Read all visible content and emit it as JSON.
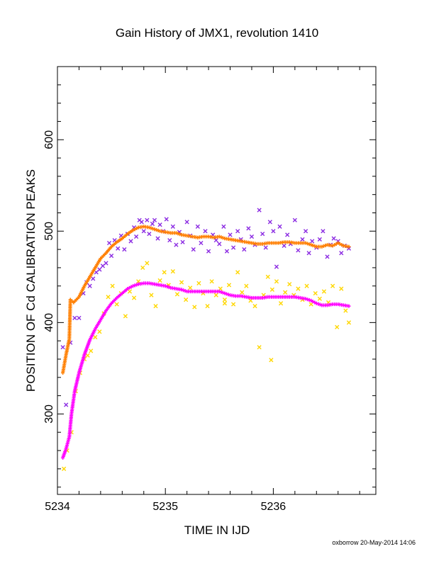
{
  "chart_data": {
    "type": "scatter",
    "title": "Gain History of JMX1, revolution 1410",
    "xlabel": "TIME IN IJD",
    "ylabel": "POSITION OF Cd CALIBRATION PEAKS",
    "xlim": [
      5234.0,
      5236.95
    ],
    "ylim": [
      212,
      680
    ],
    "xticks": [
      5234,
      5235,
      5236
    ],
    "xtick_labels": [
      "5234",
      "5235",
      "5236"
    ],
    "yticks": [
      300,
      400,
      500,
      600
    ],
    "ytick_labels": [
      "300",
      "400",
      "500",
      "600"
    ],
    "grid": false,
    "footer": "oxborrow 20-May-2014 14:06",
    "series": [
      {
        "marker": "x",
        "color": "#8b2be2",
        "style": "scattered",
        "points": [
          [
            5234.05,
            373
          ],
          [
            5234.08,
            310
          ],
          [
            5234.12,
            378
          ],
          [
            5234.16,
            405
          ],
          [
            5234.2,
            405
          ],
          [
            5234.24,
            432
          ],
          [
            5234.27,
            444
          ],
          [
            5234.3,
            440
          ],
          [
            5234.33,
            448
          ],
          [
            5234.36,
            455
          ],
          [
            5234.39,
            458
          ],
          [
            5234.42,
            462
          ],
          [
            5234.45,
            465
          ],
          [
            5234.48,
            487
          ],
          [
            5234.5,
            473
          ],
          [
            5234.53,
            490
          ],
          [
            5234.56,
            481
          ],
          [
            5234.59,
            495
          ],
          [
            5234.62,
            480
          ],
          [
            5234.65,
            497
          ],
          [
            5234.68,
            489
          ],
          [
            5234.71,
            504
          ],
          [
            5234.73,
            494
          ],
          [
            5234.76,
            512
          ],
          [
            5234.78,
            510
          ],
          [
            5234.8,
            500
          ],
          [
            5234.83,
            512
          ],
          [
            5234.85,
            497
          ],
          [
            5234.88,
            508
          ],
          [
            5234.9,
            512
          ],
          [
            5234.93,
            492
          ],
          [
            5234.95,
            507
          ],
          [
            5234.98,
            500
          ],
          [
            5235.01,
            513
          ],
          [
            5235.04,
            490
          ],
          [
            5235.07,
            505
          ],
          [
            5235.1,
            485
          ],
          [
            5235.13,
            499
          ],
          [
            5235.16,
            488
          ],
          [
            5235.2,
            510
          ],
          [
            5235.23,
            495
          ],
          [
            5235.26,
            480
          ],
          [
            5235.3,
            505
          ],
          [
            5235.33,
            487
          ],
          [
            5235.37,
            500
          ],
          [
            5235.4,
            478
          ],
          [
            5235.44,
            496
          ],
          [
            5235.47,
            490
          ],
          [
            5235.5,
            486
          ],
          [
            5235.54,
            505
          ],
          [
            5235.57,
            478
          ],
          [
            5235.6,
            496
          ],
          [
            5235.63,
            482
          ],
          [
            5235.67,
            500
          ],
          [
            5235.7,
            491
          ],
          [
            5235.73,
            480
          ],
          [
            5235.77,
            503
          ],
          [
            5235.8,
            494
          ],
          [
            5235.83,
            485
          ],
          [
            5235.87,
            523
          ],
          [
            5235.9,
            497
          ],
          [
            5235.93,
            482
          ],
          [
            5235.97,
            510
          ],
          [
            5236.0,
            500
          ],
          [
            5236.03,
            461
          ],
          [
            5236.06,
            505
          ],
          [
            5236.1,
            484
          ],
          [
            5236.13,
            496
          ],
          [
            5236.16,
            486
          ],
          [
            5236.2,
            512
          ],
          [
            5236.23,
            479
          ],
          [
            5236.27,
            491
          ],
          [
            5236.3,
            500
          ],
          [
            5236.33,
            476
          ],
          [
            5236.36,
            489
          ],
          [
            5236.4,
            482
          ],
          [
            5236.43,
            491
          ],
          [
            5236.46,
            500
          ],
          [
            5236.5,
            472
          ],
          [
            5236.53,
            485
          ],
          [
            5236.56,
            492
          ],
          [
            5236.6,
            489
          ],
          [
            5236.63,
            476
          ],
          [
            5236.66,
            484
          ],
          [
            5236.7,
            481
          ]
        ]
      },
      {
        "marker": "x",
        "color": "#ffd700",
        "style": "scattered",
        "points": [
          [
            5234.06,
            240
          ],
          [
            5234.09,
            260
          ],
          [
            5234.13,
            280
          ],
          [
            5234.17,
            325
          ],
          [
            5234.21,
            345
          ],
          [
            5234.25,
            360
          ],
          [
            5234.28,
            364
          ],
          [
            5234.31,
            369
          ],
          [
            5234.35,
            384
          ],
          [
            5234.39,
            390
          ],
          [
            5234.43,
            410
          ],
          [
            5234.47,
            428
          ],
          [
            5234.51,
            440
          ],
          [
            5234.55,
            420
          ],
          [
            5234.59,
            432
          ],
          [
            5234.63,
            407
          ],
          [
            5234.67,
            434
          ],
          [
            5234.71,
            427
          ],
          [
            5234.75,
            445
          ],
          [
            5234.79,
            460
          ],
          [
            5234.83,
            465
          ],
          [
            5234.87,
            430
          ],
          [
            5234.91,
            418
          ],
          [
            5234.95,
            446
          ],
          [
            5234.99,
            455
          ],
          [
            5235.03,
            441
          ],
          [
            5235.07,
            456
          ],
          [
            5235.11,
            431
          ],
          [
            5235.15,
            444
          ],
          [
            5235.19,
            425
          ],
          [
            5235.23,
            438
          ],
          [
            5235.27,
            417
          ],
          [
            5235.31,
            443
          ],
          [
            5235.35,
            432
          ],
          [
            5235.39,
            418
          ],
          [
            5235.43,
            445
          ],
          [
            5235.47,
            430
          ],
          [
            5235.51,
            437
          ],
          [
            5235.55,
            425
          ],
          [
            5235.59,
            441
          ],
          [
            5235.63,
            420
          ],
          [
            5235.67,
            455
          ],
          [
            5235.71,
            433
          ],
          [
            5235.75,
            440
          ],
          [
            5235.79,
            424
          ],
          [
            5235.83,
            418
          ],
          [
            5235.87,
            373
          ],
          [
            5235.91,
            430
          ],
          [
            5235.95,
            450
          ],
          [
            5235.99,
            436
          ],
          [
            5236.03,
            445
          ],
          [
            5236.07,
            421
          ],
          [
            5236.11,
            433
          ],
          [
            5236.15,
            442
          ],
          [
            5236.19,
            430
          ],
          [
            5236.23,
            437
          ],
          [
            5236.27,
            425
          ],
          [
            5236.31,
            440
          ],
          [
            5236.35,
            420
          ],
          [
            5236.39,
            432
          ],
          [
            5236.43,
            426
          ],
          [
            5236.47,
            434
          ],
          [
            5236.51,
            422
          ],
          [
            5236.55,
            440
          ],
          [
            5236.59,
            395
          ],
          [
            5236.63,
            437
          ],
          [
            5236.67,
            413
          ],
          [
            5236.7,
            400
          ],
          [
            5235.98,
            359
          ],
          [
            5235.55,
            421
          ]
        ]
      },
      {
        "marker": "+",
        "color": "#ff7f00",
        "style": "dense",
        "points": [
          [
            5234.05,
            345
          ],
          [
            5234.08,
            365
          ],
          [
            5234.11,
            382
          ],
          [
            5234.12,
            425
          ],
          [
            5234.15,
            422
          ],
          [
            5234.2,
            428
          ],
          [
            5234.25,
            440
          ],
          [
            5234.3,
            450
          ],
          [
            5234.35,
            460
          ],
          [
            5234.4,
            470
          ],
          [
            5234.45,
            476
          ],
          [
            5234.5,
            483
          ],
          [
            5234.55,
            488
          ],
          [
            5234.6,
            492
          ],
          [
            5234.65,
            497
          ],
          [
            5234.7,
            501
          ],
          [
            5234.75,
            504
          ],
          [
            5234.8,
            505
          ],
          [
            5234.85,
            504
          ],
          [
            5234.9,
            502
          ],
          [
            5234.95,
            500
          ],
          [
            5235.0,
            499
          ],
          [
            5235.05,
            498
          ],
          [
            5235.1,
            498
          ],
          [
            5235.15,
            496
          ],
          [
            5235.2,
            495
          ],
          [
            5235.25,
            494
          ],
          [
            5235.3,
            493
          ],
          [
            5235.35,
            494
          ],
          [
            5235.4,
            494
          ],
          [
            5235.45,
            493
          ],
          [
            5235.5,
            494
          ],
          [
            5235.55,
            492
          ],
          [
            5235.6,
            491
          ],
          [
            5235.65,
            490
          ],
          [
            5235.7,
            489
          ],
          [
            5235.75,
            488
          ],
          [
            5235.8,
            487
          ],
          [
            5235.85,
            486
          ],
          [
            5235.9,
            486
          ],
          [
            5235.95,
            487
          ],
          [
            5236.0,
            487
          ],
          [
            5236.05,
            487
          ],
          [
            5236.1,
            488
          ],
          [
            5236.15,
            488
          ],
          [
            5236.2,
            487
          ],
          [
            5236.25,
            487
          ],
          [
            5236.3,
            487
          ],
          [
            5236.35,
            485
          ],
          [
            5236.4,
            483
          ],
          [
            5236.45,
            483
          ],
          [
            5236.5,
            485
          ],
          [
            5236.55,
            484
          ],
          [
            5236.6,
            487
          ],
          [
            5236.65,
            484
          ],
          [
            5236.7,
            483
          ]
        ]
      },
      {
        "marker": "+",
        "color": "#ff00ff",
        "style": "dense",
        "points": [
          [
            5234.05,
            252
          ],
          [
            5234.08,
            262
          ],
          [
            5234.11,
            275
          ],
          [
            5234.13,
            300
          ],
          [
            5234.16,
            325
          ],
          [
            5234.2,
            345
          ],
          [
            5234.25,
            365
          ],
          [
            5234.3,
            381
          ],
          [
            5234.35,
            393
          ],
          [
            5234.4,
            403
          ],
          [
            5234.45,
            413
          ],
          [
            5234.5,
            421
          ],
          [
            5234.55,
            427
          ],
          [
            5234.6,
            432
          ],
          [
            5234.65,
            437
          ],
          [
            5234.7,
            440
          ],
          [
            5234.75,
            442
          ],
          [
            5234.8,
            443
          ],
          [
            5234.85,
            443
          ],
          [
            5234.9,
            442
          ],
          [
            5234.95,
            441
          ],
          [
            5235.0,
            440
          ],
          [
            5235.05,
            438
          ],
          [
            5235.1,
            437
          ],
          [
            5235.15,
            436
          ],
          [
            5235.2,
            434
          ],
          [
            5235.25,
            434
          ],
          [
            5235.3,
            434
          ],
          [
            5235.35,
            434
          ],
          [
            5235.4,
            434
          ],
          [
            5235.45,
            434
          ],
          [
            5235.5,
            434
          ],
          [
            5235.55,
            432
          ],
          [
            5235.6,
            430
          ],
          [
            5235.65,
            429
          ],
          [
            5235.7,
            429
          ],
          [
            5235.75,
            428
          ],
          [
            5235.8,
            427
          ],
          [
            5235.85,
            427
          ],
          [
            5235.9,
            427
          ],
          [
            5235.95,
            428
          ],
          [
            5236.0,
            428
          ],
          [
            5236.05,
            428
          ],
          [
            5236.1,
            428
          ],
          [
            5236.15,
            428
          ],
          [
            5236.2,
            428
          ],
          [
            5236.25,
            427
          ],
          [
            5236.3,
            426
          ],
          [
            5236.35,
            424
          ],
          [
            5236.4,
            421
          ],
          [
            5236.45,
            419
          ],
          [
            5236.5,
            419
          ],
          [
            5236.55,
            420
          ],
          [
            5236.6,
            420
          ],
          [
            5236.65,
            419
          ],
          [
            5236.7,
            418
          ]
        ]
      }
    ]
  }
}
